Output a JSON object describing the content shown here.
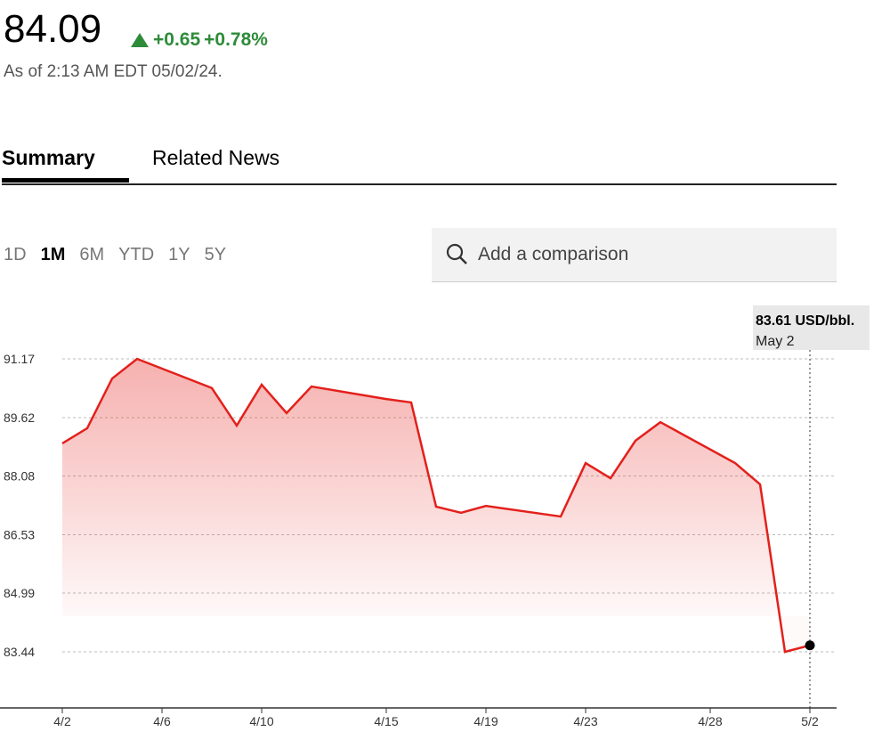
{
  "header": {
    "price": "84.09",
    "change": "+0.65",
    "change_pct": "+0.78%",
    "as_of": "As of 2:13 AM EDT 05/02/24."
  },
  "tabs": [
    "Summary",
    "Related News"
  ],
  "ranges": [
    "1D",
    "1M",
    "6M",
    "YTD",
    "1Y",
    "5Y"
  ],
  "search_placeholder": "Add a comparison",
  "chart_data": {
    "type": "area",
    "color": "#e3201b",
    "grid": true,
    "x": [
      "4/2",
      "4/3",
      "4/4",
      "4/5",
      "4/8",
      "4/9",
      "4/10",
      "4/11",
      "4/12",
      "4/15",
      "4/16",
      "4/17",
      "4/18",
      "4/19",
      "4/22",
      "4/23",
      "4/24",
      "4/25",
      "4/26",
      "4/29",
      "4/30",
      "5/1",
      "5/2"
    ],
    "values": [
      88.94,
      89.34,
      90.65,
      91.17,
      90.4,
      89.41,
      90.49,
      89.74,
      90.44,
      90.11,
      90.02,
      87.27,
      87.11,
      87.29,
      87.01,
      88.42,
      88.02,
      89.01,
      89.5,
      88.42,
      87.86,
      83.44,
      83.61
    ],
    "xlim": [
      "4/2",
      "5/2"
    ],
    "xticks": [
      "4/2",
      "4/6",
      "4/10",
      "4/15",
      "4/19",
      "4/23",
      "4/28",
      "5/2"
    ],
    "ylim": [
      81.96,
      92.65
    ],
    "yticks": [
      83.44,
      84.99,
      86.53,
      88.08,
      89.62,
      91.17
    ],
    "annotation": {
      "text": "83.61 USD/bbl.",
      "date": "May 2"
    }
  }
}
